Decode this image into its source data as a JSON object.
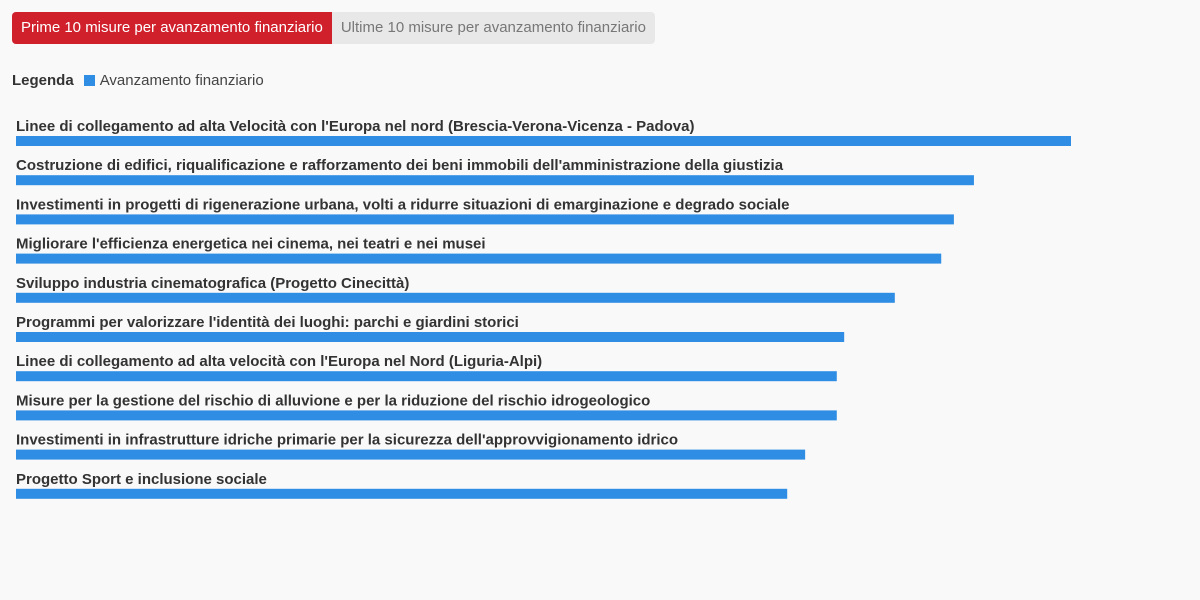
{
  "tabs": [
    {
      "label": "Prime 10 misure per avanzamento finanziario",
      "active": true
    },
    {
      "label": "Ultime 10 misure per avanzamento finanziario",
      "active": false
    }
  ],
  "legend": {
    "title": "Legenda",
    "items": [
      {
        "label": "Avanzamento finanziario",
        "color": "#2f8de4"
      }
    ]
  },
  "chart_data": {
    "type": "bar",
    "orientation": "horizontal",
    "categories": [
      "Linee di collegamento ad alta Velocità con l'Europa nel nord (Brescia-Verona-Vicenza - Padova)",
      "Costruzione di edifici, riqualificazione e rafforzamento dei beni immobili dell'amministrazione della giustizia",
      "Investimenti in progetti di rigenerazione urbana, volti a ridurre situazioni di emarginazione e degrado sociale",
      "Migliorare l'efficienza energetica nei cinema, nei teatri e nei musei",
      "Sviluppo industria cinematografica (Progetto Cinecittà)",
      "Programmi per valorizzare l'identità dei luoghi: parchi e giardini storici",
      "Linee di collegamento ad alta velocità con l'Europa nel Nord (Liguria-Alpi)",
      "Misure per la gestione del rischio di alluvione e per la riduzione del rischio idrogeologico",
      "Investimenti in infrastrutture idriche primarie per la sicurezza dell'approvvigionamento idrico",
      "Progetto Sport e inclusione sociale"
    ],
    "series": [
      {
        "name": "Avanzamento finanziario",
        "color": "#2f8de4",
        "values": [
          100,
          90.8,
          88.9,
          87.7,
          83.3,
          78.5,
          77.8,
          77.8,
          74.8,
          73.1
        ]
      }
    ],
    "xlim": [
      0,
      100
    ],
    "grid": false,
    "legend_position": "top-left"
  }
}
